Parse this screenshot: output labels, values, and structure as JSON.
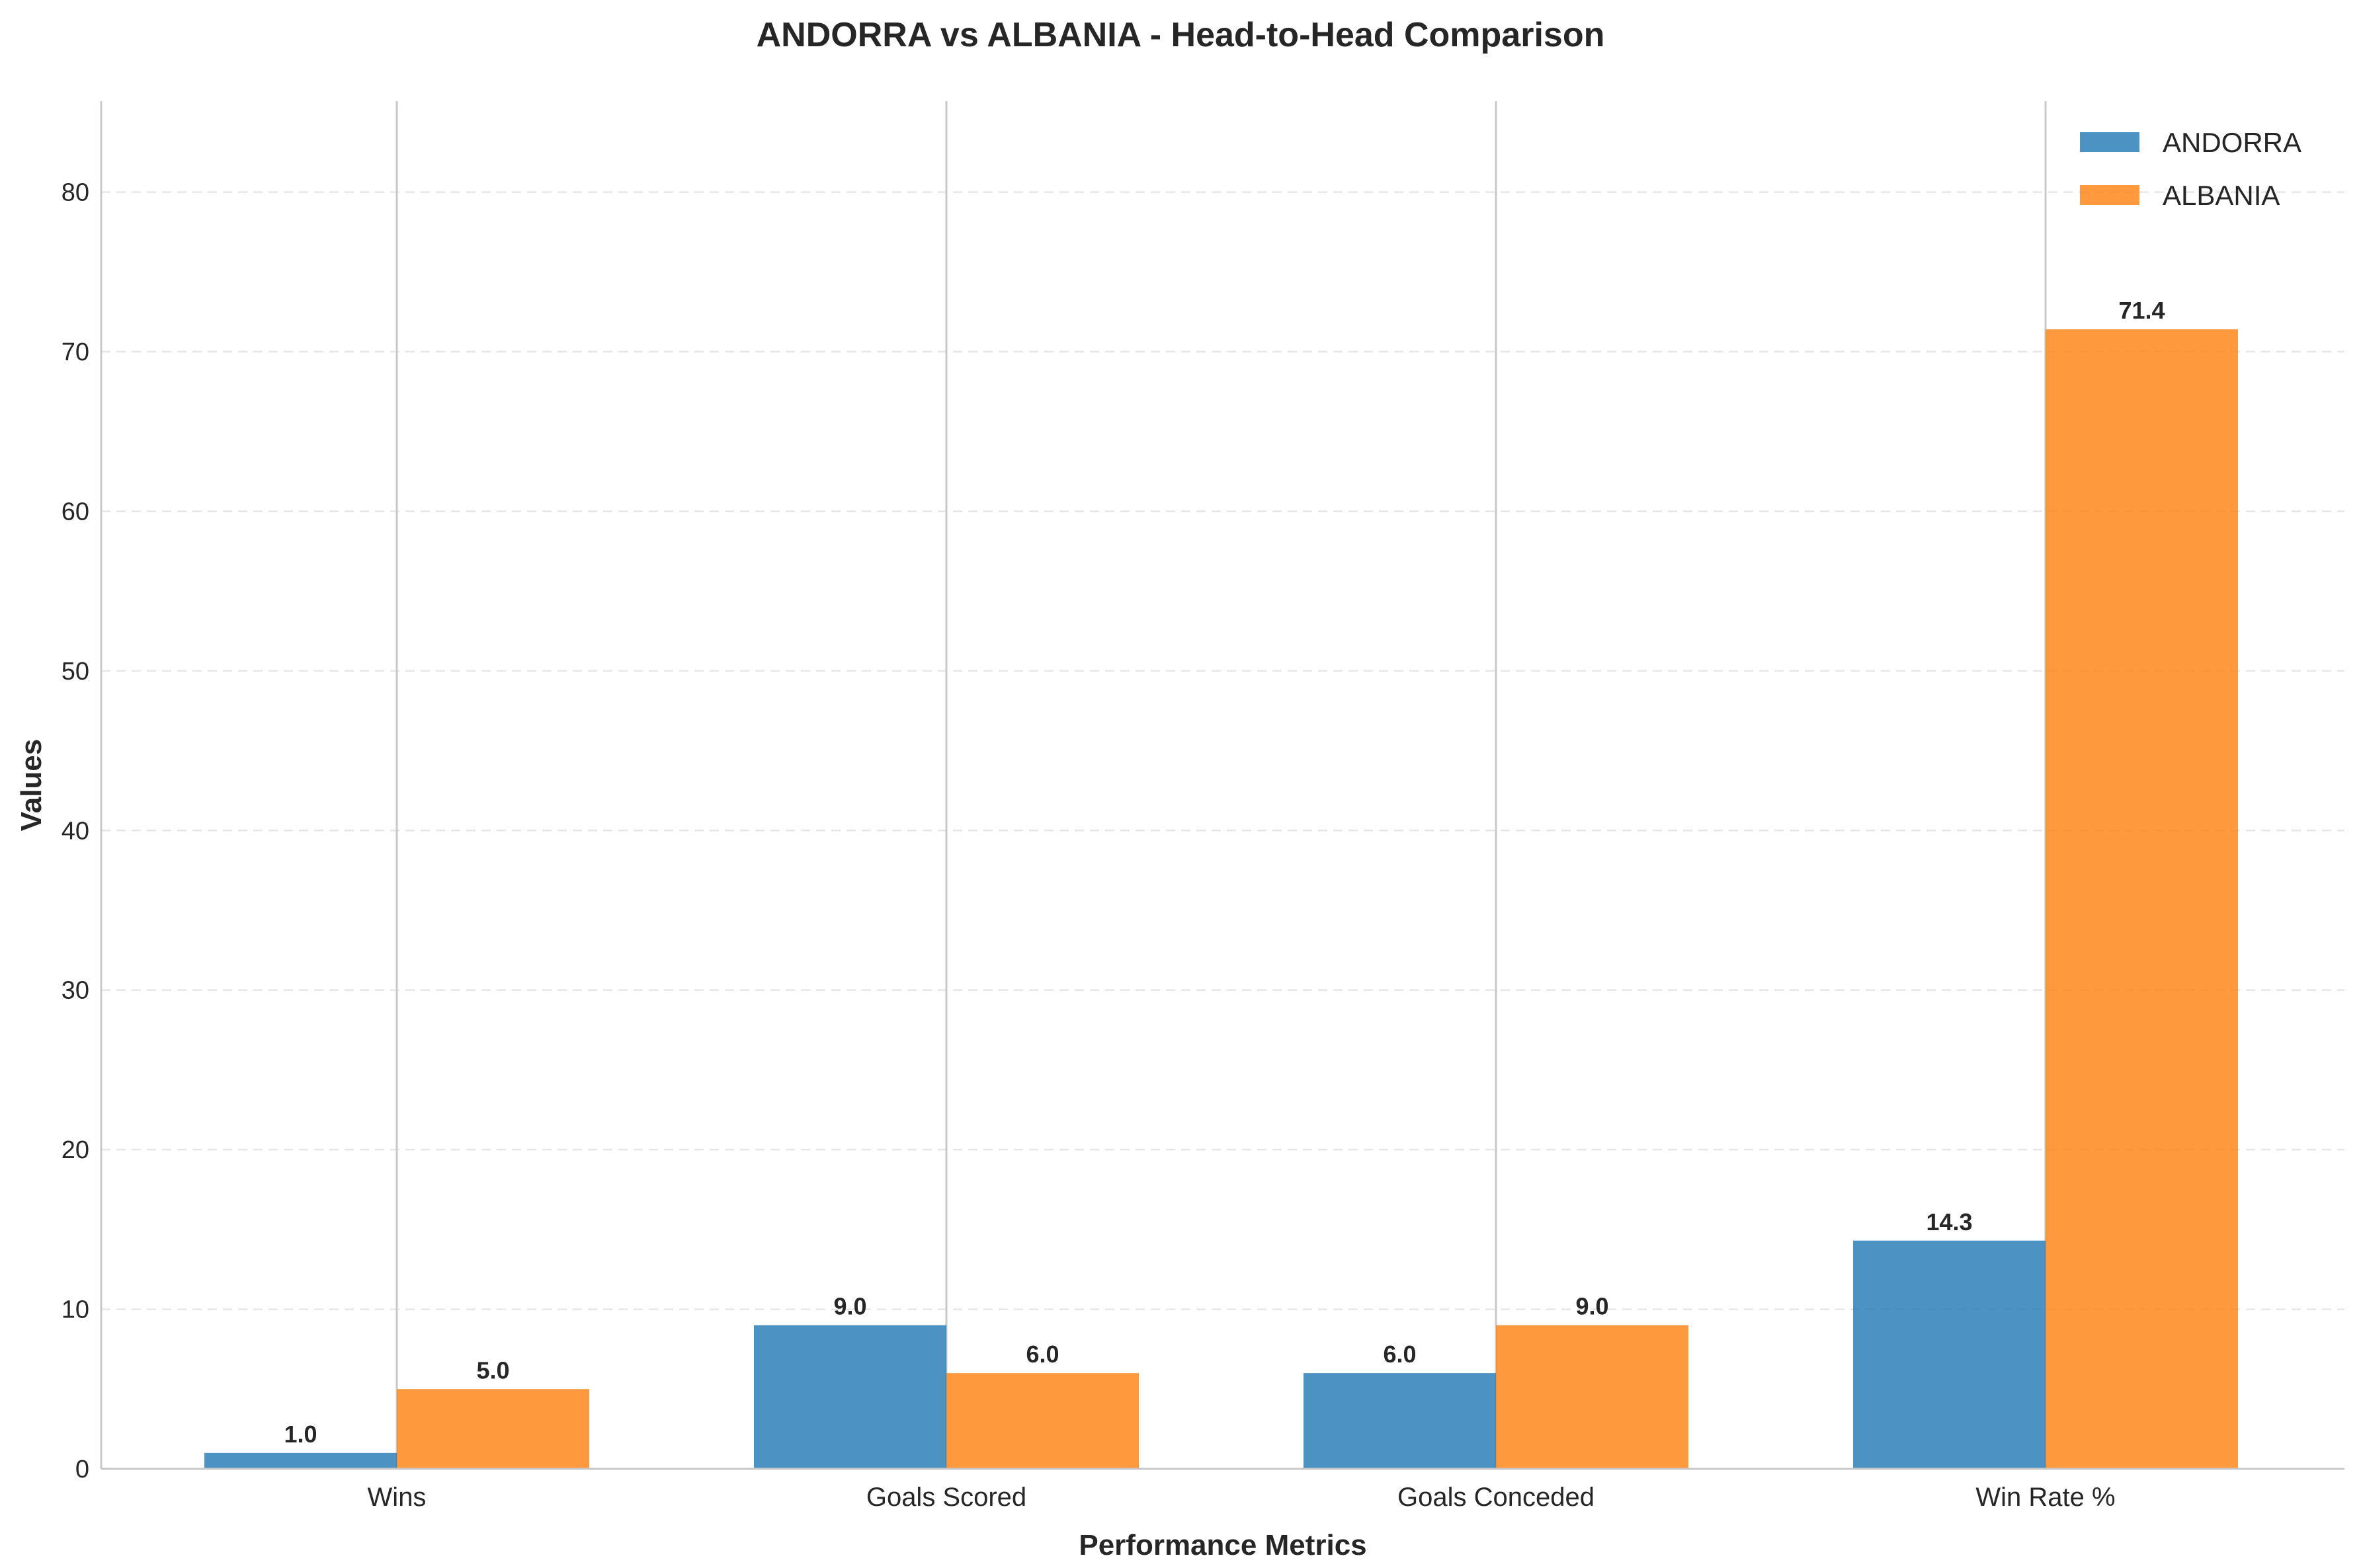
{
  "chart_data": {
    "type": "bar",
    "title": "ANDORRA vs ALBANIA - Head-to-Head Comparison",
    "xlabel": "Performance Metrics",
    "ylabel": "Values",
    "categories": [
      "Wins",
      "Goals Scored",
      "Goals Conceded",
      "Win Rate %"
    ],
    "series": [
      {
        "name": "ANDORRA",
        "values": [
          1.0,
          9.0,
          6.0,
          14.3
        ],
        "color": "#1f77b4"
      },
      {
        "name": "ALBANIA",
        "values": [
          5.0,
          6.0,
          9.0,
          71.4
        ],
        "color": "#ff7f0e"
      }
    ],
    "value_labels": {
      "ANDORRA": [
        "1.0",
        "9.0",
        "6.0",
        "14.3"
      ],
      "ALBANIA": [
        "5.0",
        "6.0",
        "9.0",
        "71.4"
      ]
    },
    "yticks": [
      0,
      10,
      20,
      30,
      40,
      50,
      60,
      70,
      80
    ],
    "ylim": [
      0,
      85.7
    ],
    "grid": "horizontal dashed",
    "legend": "top-right"
  }
}
